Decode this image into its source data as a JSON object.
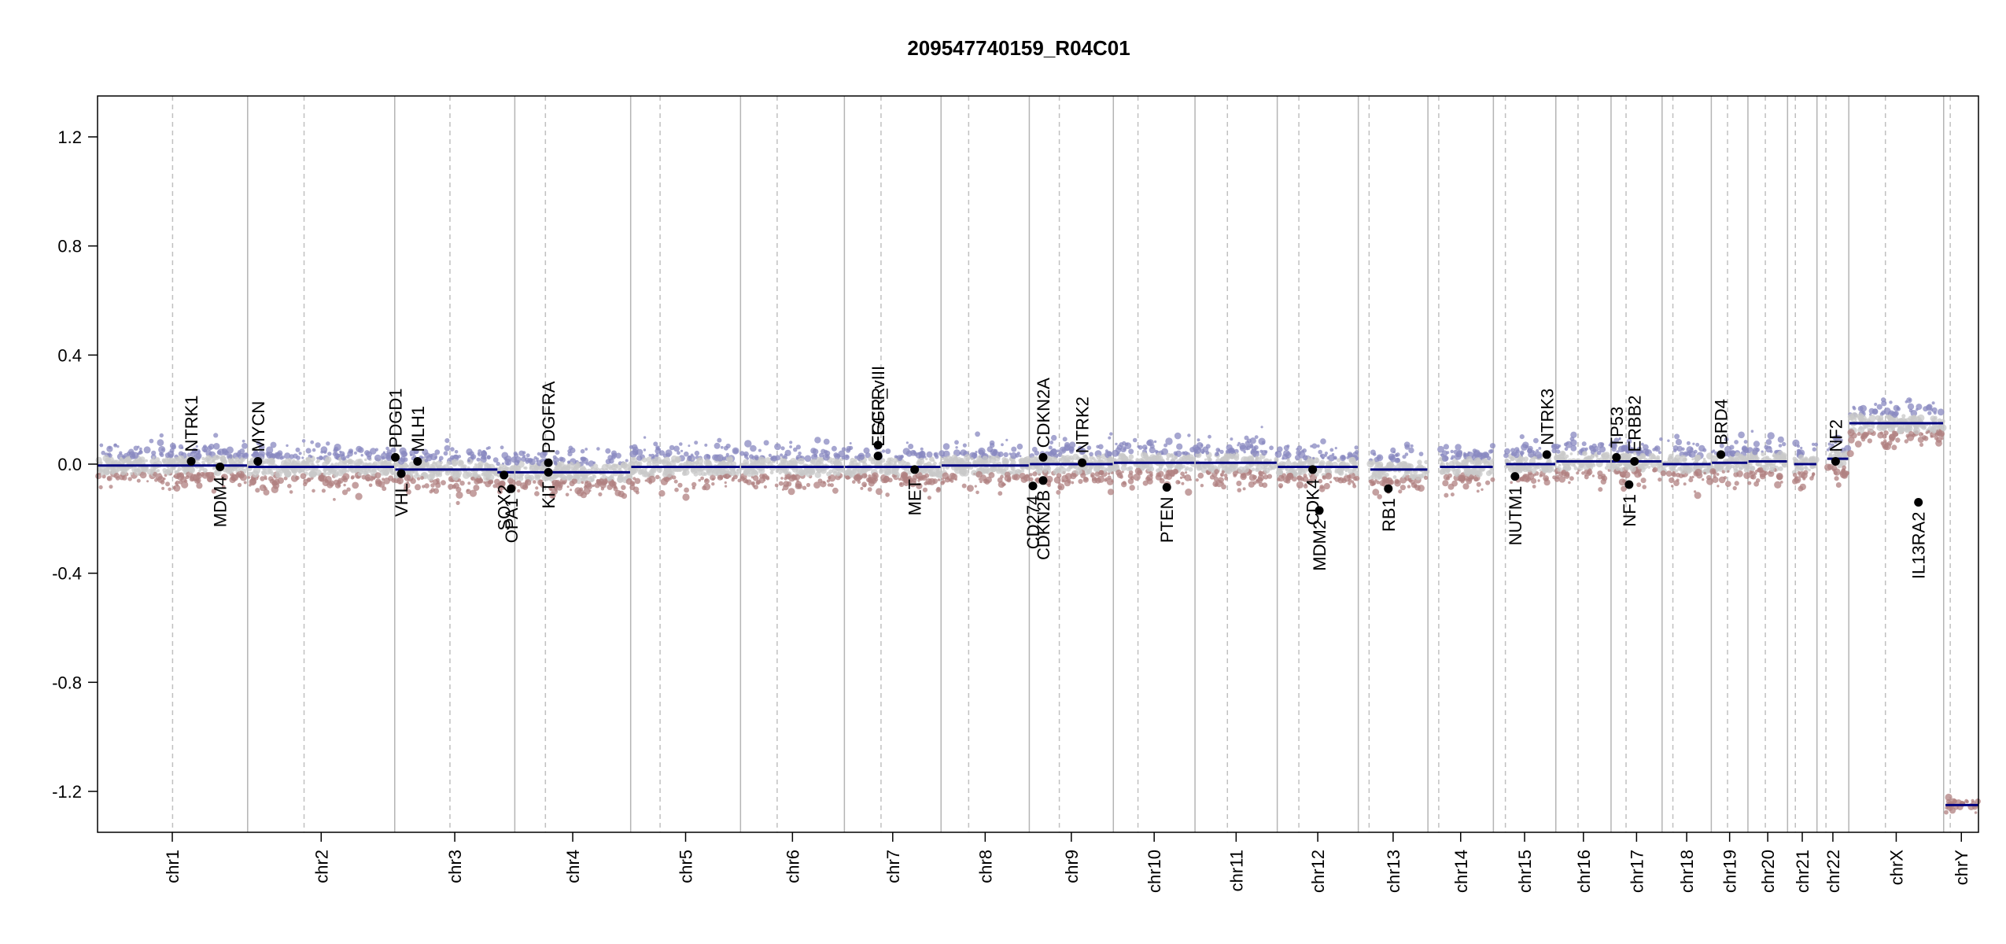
{
  "chart_data": {
    "type": "scatter",
    "title": "209547740159_R04C01",
    "xlabel": "",
    "ylabel": "",
    "ylim": [
      -1.35,
      1.35
    ],
    "yticks": [
      "1.2",
      "0.8",
      "0.4",
      "0.0",
      "-0.4",
      "-0.8",
      "-1.2"
    ],
    "ytick_values": [
      1.2,
      0.8,
      0.4,
      0.0,
      -0.4,
      -0.8,
      -1.2
    ],
    "grid": false,
    "colors": {
      "axis": "#000000",
      "segment": "#000080",
      "gain": "#8888c0",
      "loss": "#b08080",
      "neutral": "#c8c8c8",
      "chr_boundary": "#b4b4b4",
      "centromere": "#c0c0c0",
      "gene_point": "#000000"
    },
    "chromosomes": [
      {
        "name": "chr1",
        "size": 249,
        "cen": 125
      },
      {
        "name": "chr2",
        "size": 243,
        "cen": 93
      },
      {
        "name": "chr3",
        "size": 198,
        "cen": 91
      },
      {
        "name": "chr4",
        "size": 191,
        "cen": 50
      },
      {
        "name": "chr5",
        "size": 181,
        "cen": 48
      },
      {
        "name": "chr6",
        "size": 171,
        "cen": 60
      },
      {
        "name": "chr7",
        "size": 159,
        "cen": 60
      },
      {
        "name": "chr8",
        "size": 145,
        "cen": 45
      },
      {
        "name": "chr9",
        "size": 138,
        "cen": 49
      },
      {
        "name": "chr10",
        "size": 134,
        "cen": 40
      },
      {
        "name": "chr11",
        "size": 135,
        "cen": 53
      },
      {
        "name": "chr12",
        "size": 133,
        "cen": 35
      },
      {
        "name": "chr13",
        "size": 114,
        "cen": 17
      },
      {
        "name": "chr14",
        "size": 107,
        "cen": 17
      },
      {
        "name": "chr15",
        "size": 102,
        "cen": 19
      },
      {
        "name": "chr16",
        "size": 90,
        "cen": 36
      },
      {
        "name": "chr17",
        "size": 83,
        "cen": 24
      },
      {
        "name": "chr18",
        "size": 80,
        "cen": 17
      },
      {
        "name": "chr19",
        "size": 59,
        "cen": 26
      },
      {
        "name": "chr20",
        "size": 64,
        "cen": 28
      },
      {
        "name": "chr21",
        "size": 47,
        "cen": 12
      },
      {
        "name": "chr22",
        "size": 51,
        "cen": 14
      },
      {
        "name": "chrX",
        "size": 156,
        "cen": 60
      },
      {
        "name": "chrY",
        "size": 57,
        "cen": 10
      }
    ],
    "segments": [
      {
        "chr": "chr1",
        "start": 0,
        "end": 249,
        "value": -0.005
      },
      {
        "chr": "chr2",
        "start": 0,
        "end": 243,
        "value": -0.01
      },
      {
        "chr": "chr3",
        "start": 0,
        "end": 170,
        "value": -0.02
      },
      {
        "chr": "chr3",
        "start": 170,
        "end": 198,
        "value": -0.03
      },
      {
        "chr": "chr4",
        "start": 0,
        "end": 191,
        "value": -0.03
      },
      {
        "chr": "chr5",
        "start": 0,
        "end": 181,
        "value": -0.01
      },
      {
        "chr": "chr6",
        "start": 0,
        "end": 171,
        "value": -0.01
      },
      {
        "chr": "chr7",
        "start": 0,
        "end": 159,
        "value": -0.01
      },
      {
        "chr": "chr8",
        "start": 0,
        "end": 145,
        "value": -0.005
      },
      {
        "chr": "chr9",
        "start": 0,
        "end": 138,
        "value": 0.0
      },
      {
        "chr": "chr10",
        "start": 0,
        "end": 134,
        "value": 0.005
      },
      {
        "chr": "chr11",
        "start": 0,
        "end": 135,
        "value": 0.005
      },
      {
        "chr": "chr12",
        "start": 0,
        "end": 133,
        "value": -0.01
      },
      {
        "chr": "chr13",
        "start": 19,
        "end": 114,
        "value": -0.02
      },
      {
        "chr": "chr14",
        "start": 19,
        "end": 107,
        "value": -0.01
      },
      {
        "chr": "chr15",
        "start": 20,
        "end": 102,
        "value": 0.0
      },
      {
        "chr": "chr16",
        "start": 0,
        "end": 90,
        "value": 0.01
      },
      {
        "chr": "chr17",
        "start": 0,
        "end": 83,
        "value": 0.01
      },
      {
        "chr": "chr18",
        "start": 0,
        "end": 80,
        "value": 0.0
      },
      {
        "chr": "chr19",
        "start": 0,
        "end": 59,
        "value": 0.005
      },
      {
        "chr": "chr20",
        "start": 0,
        "end": 64,
        "value": 0.01
      },
      {
        "chr": "chr21",
        "start": 10,
        "end": 47,
        "value": 0.0
      },
      {
        "chr": "chr22",
        "start": 16,
        "end": 51,
        "value": 0.02
      },
      {
        "chr": "chrX",
        "start": 0,
        "end": 156,
        "value": 0.15
      },
      {
        "chr": "chrY",
        "start": 2,
        "end": 57,
        "value": -1.25
      }
    ],
    "genes": [
      {
        "name": "NTRK1",
        "chr": "chr1",
        "pos": 156,
        "value": 0.01,
        "label_side": "up"
      },
      {
        "name": "MDM4",
        "chr": "chr1",
        "pos": 204,
        "value": -0.01,
        "label_side": "down"
      },
      {
        "name": "MYCN",
        "chr": "chr2",
        "pos": 16,
        "value": 0.01,
        "label_side": "up"
      },
      {
        "name": "PDGD1",
        "chr": "chr3",
        "pos": 0,
        "value": 0.025,
        "label_side": "up"
      },
      {
        "name": "VHL",
        "chr": "chr3",
        "pos": 10,
        "value": -0.035,
        "label_side": "down"
      },
      {
        "name": "MLH1",
        "chr": "chr3",
        "pos": 37,
        "value": 0.01,
        "label_side": "up"
      },
      {
        "name": "SOX2",
        "chr": "chr3",
        "pos": 181,
        "value": -0.04,
        "label_side": "down"
      },
      {
        "name": "OPA1",
        "chr": "chr3",
        "pos": 193,
        "value": -0.09,
        "label_side": "down"
      },
      {
        "name": "KIT",
        "chr": "chr4",
        "pos": 55,
        "value": -0.03,
        "label_side": "down"
      },
      {
        "name": "PDGFRA",
        "chr": "chr4",
        "pos": 55,
        "value": 0.005,
        "label_side": "up"
      },
      {
        "name": "EGFR",
        "chr": "chr7",
        "pos": 55,
        "value": 0.07,
        "label_side": "up"
      },
      {
        "name": "EGFR_vIII",
        "chr": "chr7",
        "pos": 55,
        "value": 0.03,
        "label_side": "up"
      },
      {
        "name": "MET",
        "chr": "chr7",
        "pos": 116,
        "value": -0.02,
        "label_side": "down"
      },
      {
        "name": "CD274",
        "chr": "chr9",
        "pos": 5,
        "value": -0.08,
        "label_side": "down"
      },
      {
        "name": "CDKN2B",
        "chr": "chr9",
        "pos": 22,
        "value": -0.06,
        "label_side": "down"
      },
      {
        "name": "CDKN2A",
        "chr": "chr9",
        "pos": 22,
        "value": 0.025,
        "label_side": "up"
      },
      {
        "name": "NTRK2",
        "chr": "chr9",
        "pos": 87,
        "value": 0.005,
        "label_side": "up"
      },
      {
        "name": "PTEN",
        "chr": "chr10",
        "pos": 88,
        "value": -0.085,
        "label_side": "down"
      },
      {
        "name": "MDM2",
        "chr": "chr12",
        "pos": 69,
        "value": -0.17,
        "label_side": "down"
      },
      {
        "name": "CDK4",
        "chr": "chr12",
        "pos": 58,
        "value": -0.02,
        "label_side": "down"
      },
      {
        "name": "RB1",
        "chr": "chr13",
        "pos": 49,
        "value": -0.09,
        "label_side": "down"
      },
      {
        "name": "NUTM1",
        "chr": "chr15",
        "pos": 35,
        "value": -0.045,
        "label_side": "down"
      },
      {
        "name": "NTRK3",
        "chr": "chr15",
        "pos": 88,
        "value": 0.035,
        "label_side": "up"
      },
      {
        "name": "TP53",
        "chr": "chr17",
        "pos": 8,
        "value": 0.025,
        "label_side": "up"
      },
      {
        "name": "NF1",
        "chr": "chr17",
        "pos": 29,
        "value": -0.075,
        "label_side": "down"
      },
      {
        "name": "ERBB2",
        "chr": "chr17",
        "pos": 38,
        "value": 0.01,
        "label_side": "up"
      },
      {
        "name": "BRD4",
        "chr": "chr19",
        "pos": 15,
        "value": 0.035,
        "label_side": "up"
      },
      {
        "name": "NF2",
        "chr": "chr22",
        "pos": 30,
        "value": 0.01,
        "label_side": "up"
      },
      {
        "name": "IL13RA2",
        "chr": "chrX",
        "pos": 115,
        "value": -0.14,
        "label_side": "down"
      }
    ]
  }
}
